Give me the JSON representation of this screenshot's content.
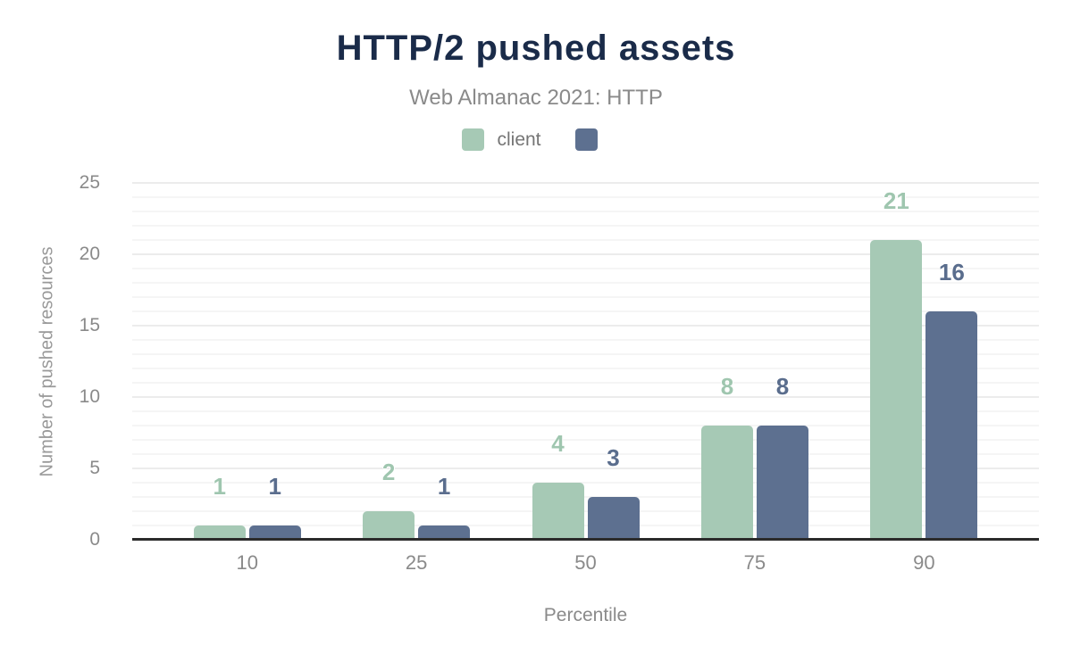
{
  "colors": {
    "title": "#1a2b49",
    "muted_text": "#8a8a8a",
    "axis_line": "#2b2b2b",
    "gridline": "#f5f5f5",
    "gridline_major": "#ececec",
    "series_client": "#a6c9b5",
    "series_second": "#5d7090"
  },
  "chart_data": {
    "type": "bar",
    "title": "HTTP/2 pushed assets",
    "subtitle": "Web Almanac 2021: HTTP",
    "xlabel": "Percentile",
    "ylabel": "Number of pushed resources",
    "categories": [
      "10",
      "25",
      "50",
      "75",
      "90"
    ],
    "series": [
      {
        "name": "client",
        "color": "#a6c9b5",
        "label_color": "#9fc6af",
        "values": [
          1,
          2,
          4,
          8,
          21
        ]
      },
      {
        "name": "",
        "color": "#5d7090",
        "label_color": "#5a6d8d",
        "values": [
          1,
          1,
          3,
          8,
          16
        ]
      }
    ],
    "ylim": [
      0,
      25
    ],
    "y_tick_step": 5,
    "gridline_step": 1,
    "grid": "on",
    "legend_position": "top",
    "bar_value_labels": "shown"
  }
}
